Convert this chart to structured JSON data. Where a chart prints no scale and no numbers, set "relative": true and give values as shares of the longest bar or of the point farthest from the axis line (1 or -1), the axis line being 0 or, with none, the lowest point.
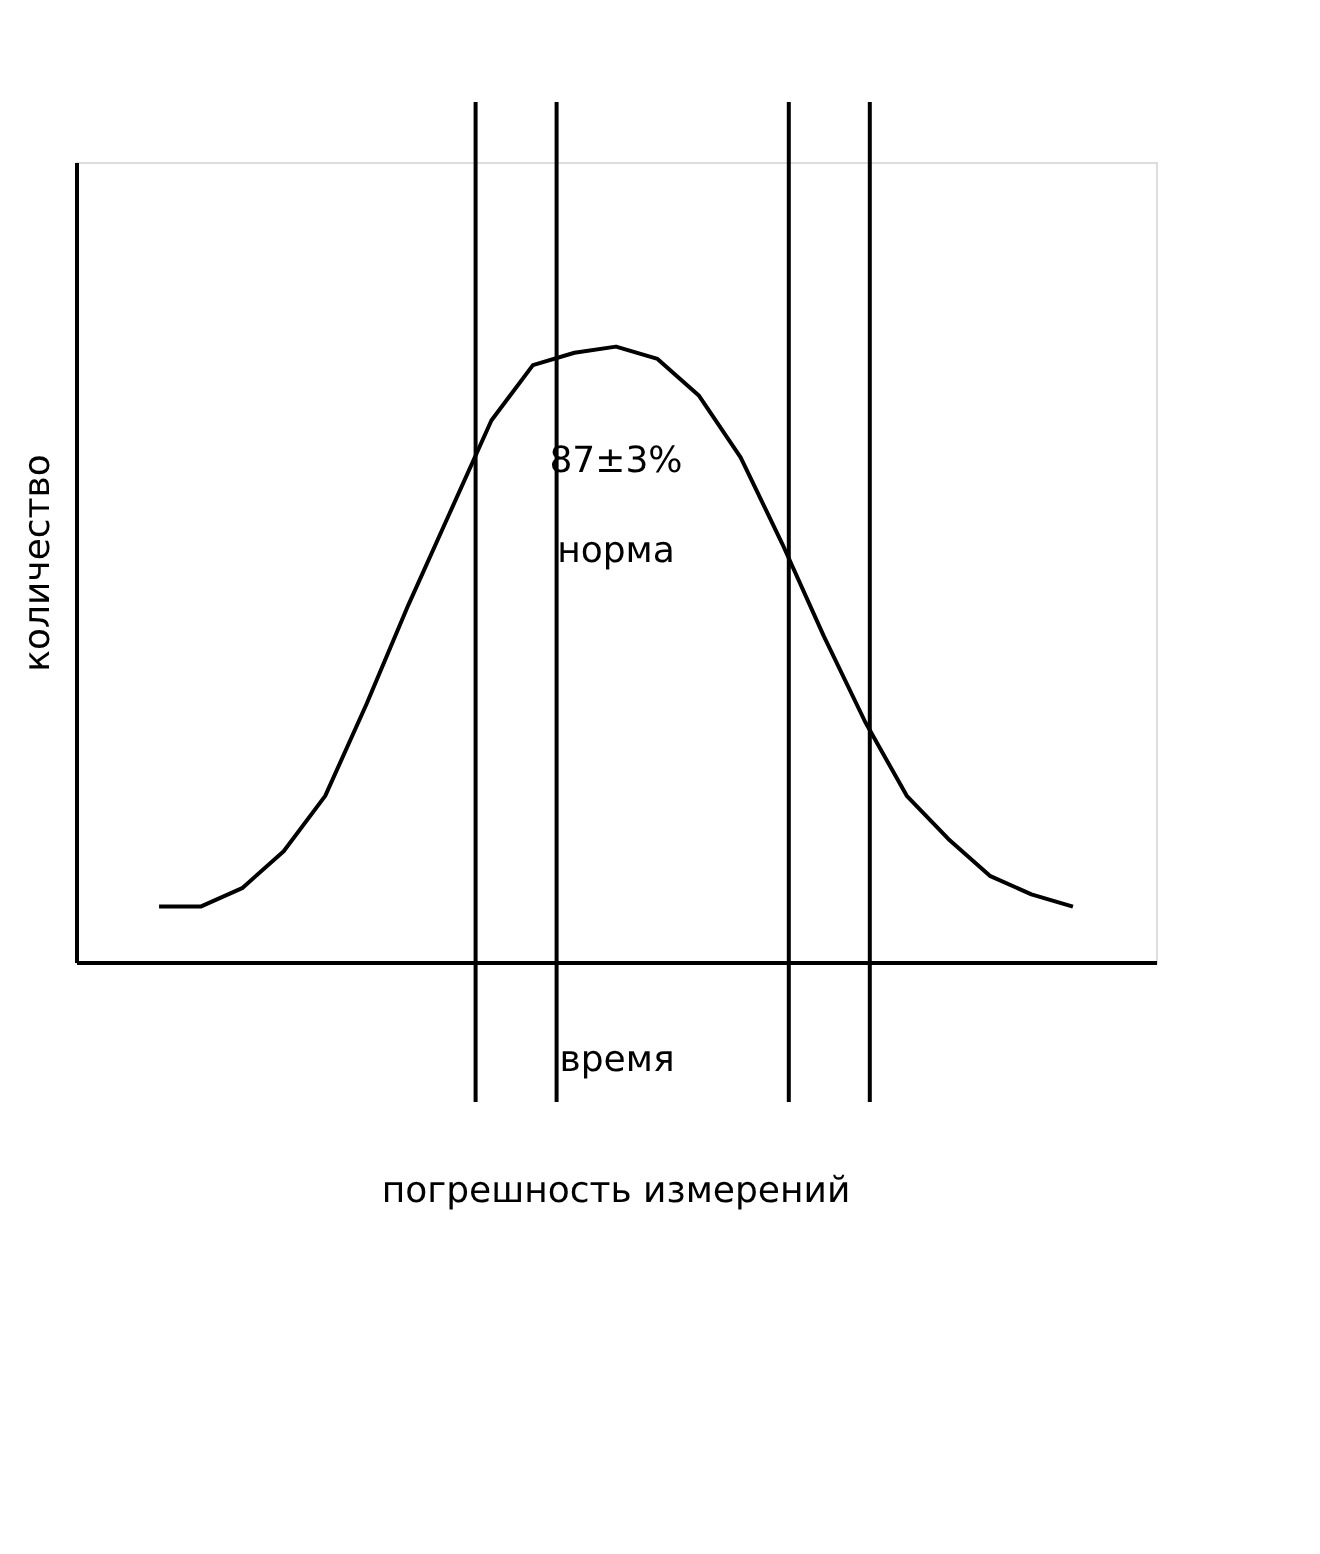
{
  "chart_data": {
    "type": "line",
    "relative": true,
    "xlabel": "время",
    "ylabel": "количество",
    "categories": [
      null,
      null,
      null,
      null,
      null,
      null,
      null,
      null,
      null,
      null,
      null,
      null,
      null,
      null,
      null,
      null,
      null,
      null,
      null,
      null,
      null,
      null,
      null
    ],
    "series": [
      {
        "color": "#000000",
        "values": [
          0.09,
          0.09,
          0.12,
          0.18,
          0.27,
          0.42,
          0.58,
          0.73,
          0.88,
          0.97,
          0.99,
          1.0,
          0.98,
          0.92,
          0.82,
          0.68,
          0.53,
          0.39,
          0.27,
          0.2,
          0.14,
          0.11,
          0.09
        ]
      }
    ],
    "tick_labels": false,
    "grid": false,
    "marker": "none",
    "line_style": "solid",
    "annotations": [
      "87±3%",
      "норма",
      "погрешность измерений"
    ]
  }
}
